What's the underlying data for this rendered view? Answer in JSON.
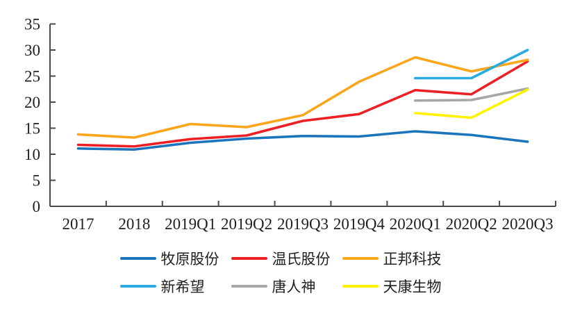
{
  "chart_data": {
    "type": "line",
    "categories": [
      "2017",
      "2018",
      "2019Q1",
      "2019Q2",
      "2019Q3",
      "2019Q4",
      "2020Q1",
      "2020Q2",
      "2020Q3"
    ],
    "series": [
      {
        "name": "牧原股份",
        "color": "#1b75bc",
        "values": [
          11.1,
          10.9,
          12.2,
          13.0,
          13.5,
          13.4,
          14.4,
          13.7,
          12.4
        ]
      },
      {
        "name": "温氏股份",
        "color": "#ec2024",
        "values": [
          11.8,
          11.5,
          12.9,
          13.6,
          16.4,
          17.7,
          22.3,
          21.5,
          27.8
        ]
      },
      {
        "name": "正邦科技",
        "color": "#faa51a",
        "values": [
          13.8,
          13.2,
          15.8,
          15.2,
          17.5,
          23.9,
          28.6,
          25.9,
          28.1
        ]
      },
      {
        "name": "新希望",
        "color": "#29abe2",
        "values": [
          null,
          null,
          null,
          null,
          null,
          null,
          24.6,
          24.6,
          30.0
        ]
      },
      {
        "name": "唐人神",
        "color": "#a7a5a6",
        "values": [
          null,
          null,
          null,
          null,
          null,
          null,
          20.3,
          20.4,
          22.6
        ]
      },
      {
        "name": "天康生物",
        "color": "#fff200",
        "values": [
          null,
          null,
          null,
          null,
          null,
          null,
          17.9,
          17.0,
          22.4
        ]
      }
    ],
    "y_ticks": [
      0,
      5,
      10,
      15,
      20,
      25,
      30,
      35
    ],
    "ylim": [
      0,
      35
    ],
    "grid": false,
    "legend_position": "bottom",
    "legend_columns": 3,
    "axis_color": "#4a4a4a",
    "text_color": "#1f1f1f"
  }
}
